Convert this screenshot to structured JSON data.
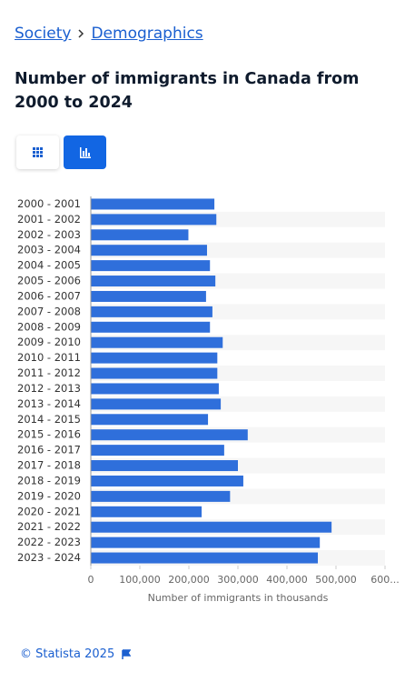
{
  "breadcrumb": [
    "Society",
    "Demographics"
  ],
  "chart_data": {
    "type": "bar",
    "orientation": "horizontal",
    "title": "Number of immigrants in Canada from 2000 to 2024",
    "categories": [
      "2000 - 2001",
      "2001 - 2002",
      "2002 - 2003",
      "2003 - 2004",
      "2004 - 2005",
      "2005 - 2006",
      "2006 - 2007",
      "2007 - 2008",
      "2008 - 2009",
      "2009 - 2010",
      "2010 - 2011",
      "2011 - 2012",
      "2012 - 2013",
      "2013 - 2014",
      "2014 - 2015",
      "2015 - 2016",
      "2016 - 2017",
      "2017 - 2018",
      "2018 - 2019",
      "2019 - 2020",
      "2020 - 2021",
      "2021 - 2022",
      "2022 - 2023",
      "2023 - 2024"
    ],
    "values": [
      252000,
      256000,
      199000,
      237000,
      243000,
      254000,
      235000,
      248000,
      243000,
      269000,
      258000,
      258000,
      261000,
      265000,
      239000,
      320000,
      272000,
      300000,
      311000,
      284000,
      226000,
      491000,
      467000,
      463000
    ],
    "color": "#2f6fdb",
    "xlim": [
      0,
      600000
    ],
    "xticks": [
      0,
      {
        "value": 100000,
        "label": "100,000"
      },
      {
        "value": 200000,
        "label": "200,000"
      },
      {
        "value": 300000,
        "label": "300,000"
      },
      {
        "value": 400000,
        "label": "400,000"
      },
      {
        "value": 500000,
        "label": "500,000"
      },
      {
        "value": 600000,
        "label": "600..."
      }
    ],
    "x_label": "Number of immigrants in thousands",
    "striped_rows": true
  },
  "footer": "© Statista 2025"
}
